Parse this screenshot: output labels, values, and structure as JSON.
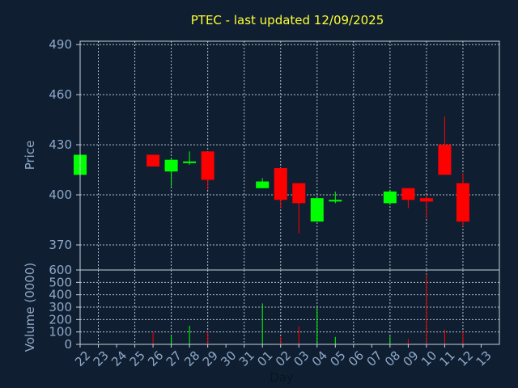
{
  "title": "PTEC - last updated 12/09/2025",
  "colors": {
    "background": "#0f1f31",
    "up": "#00ff00",
    "down": "#ff0000",
    "title": "#ffff33",
    "tick": "#8fa8c8"
  },
  "chart_data": [
    {
      "type": "candlestick",
      "title": "PTEC - last updated 12/09/2025",
      "ylabel": "Price",
      "ylim": [
        355,
        492
      ],
      "yticks": [
        490,
        460,
        430,
        400,
        370
      ],
      "grid": true,
      "candles": [
        {
          "day": "22",
          "open": 412,
          "high": 424,
          "low": 412,
          "close": 424
        },
        {
          "day": "26",
          "open": 424,
          "high": 424,
          "low": 417,
          "close": 417
        },
        {
          "day": "27",
          "open": 414,
          "high": 422,
          "low": 405,
          "close": 421
        },
        {
          "day": "28",
          "open": 419,
          "high": 426,
          "low": 418,
          "close": 420
        },
        {
          "day": "29",
          "open": 426,
          "high": 426,
          "low": 403,
          "close": 409
        },
        {
          "day": "01",
          "open": 404,
          "high": 410,
          "low": 404,
          "close": 408
        },
        {
          "day": "02",
          "open": 416,
          "high": 416,
          "low": 392,
          "close": 397
        },
        {
          "day": "03",
          "open": 407,
          "high": 407,
          "low": 377,
          "close": 395
        },
        {
          "day": "04",
          "open": 384,
          "high": 398,
          "low": 384,
          "close": 398
        },
        {
          "day": "05",
          "open": 396,
          "high": 402,
          "low": 395,
          "close": 397
        },
        {
          "day": "08",
          "open": 395,
          "high": 403,
          "low": 394,
          "close": 402
        },
        {
          "day": "09",
          "open": 404,
          "high": 404,
          "low": 392,
          "close": 397
        },
        {
          "day": "10",
          "open": 398,
          "high": 400,
          "low": 386,
          "close": 396
        },
        {
          "day": "11",
          "open": 430,
          "high": 447,
          "low": 412,
          "close": 412
        },
        {
          "day": "12",
          "open": 407,
          "high": 413,
          "low": 381,
          "close": 384
        }
      ]
    },
    {
      "type": "bar",
      "ylabel": "Volume (0000)",
      "xlabel": "Day",
      "ylim": [
        0,
        600
      ],
      "yticks": [
        600,
        500,
        400,
        300,
        200,
        100,
        0
      ],
      "grid": true,
      "categories": [
        "22",
        "23",
        "24",
        "25",
        "26",
        "27",
        "28",
        "29",
        "30",
        "31",
        "01",
        "02",
        "03",
        "04",
        "05",
        "06",
        "07",
        "08",
        "09",
        "10",
        "11",
        "12",
        "13"
      ],
      "volumes": [
        {
          "day": "22",
          "value": 12,
          "dir": "up"
        },
        {
          "day": "26",
          "value": 100,
          "dir": "down"
        },
        {
          "day": "27",
          "value": 75,
          "dir": "up"
        },
        {
          "day": "28",
          "value": 150,
          "dir": "up"
        },
        {
          "day": "29",
          "value": 100,
          "dir": "down"
        },
        {
          "day": "01",
          "value": 330,
          "dir": "up"
        },
        {
          "day": "02",
          "value": 60,
          "dir": "down"
        },
        {
          "day": "03",
          "value": 145,
          "dir": "down"
        },
        {
          "day": "04",
          "value": 295,
          "dir": "up"
        },
        {
          "day": "05",
          "value": 60,
          "dir": "up"
        },
        {
          "day": "08",
          "value": 65,
          "dir": "up"
        },
        {
          "day": "09",
          "value": 45,
          "dir": "down"
        },
        {
          "day": "10",
          "value": 565,
          "dir": "down"
        },
        {
          "day": "11",
          "value": 120,
          "dir": "down"
        },
        {
          "day": "12",
          "value": 100,
          "dir": "down"
        }
      ]
    }
  ]
}
